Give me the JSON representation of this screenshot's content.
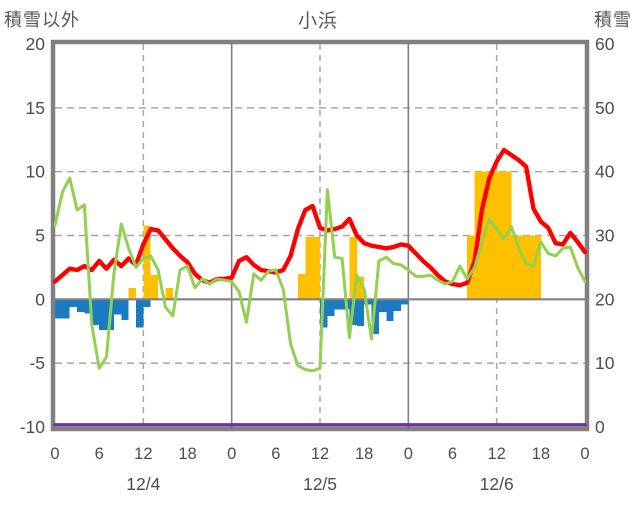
{
  "header": {
    "left_label": "積雪以外",
    "title": "小浜",
    "right_label": "積雪"
  },
  "chart_data": {
    "type": "line+bar",
    "title": "小浜",
    "x_axis": {
      "unit": "hour",
      "range_hours": [
        0,
        72
      ],
      "tick_hours": [
        0,
        6,
        12,
        18,
        24,
        30,
        36,
        42,
        48,
        54,
        60,
        66,
        72
      ],
      "tick_labels": [
        "0",
        "6",
        "12",
        "18",
        "0",
        "6",
        "12",
        "18",
        "0",
        "6",
        "12",
        "18",
        "0"
      ],
      "day_labels": [
        "12/4",
        "12/5",
        "12/6"
      ],
      "day_label_hours": [
        12,
        36,
        60
      ],
      "solid_grid_hours": [
        24,
        48
      ],
      "dashed_grid_hours": [
        12,
        36,
        60
      ]
    },
    "left_axis": {
      "label": "積雪以外",
      "range": [
        -10,
        20
      ],
      "tick_values": [
        20,
        15,
        10,
        5,
        0,
        -5,
        -10
      ],
      "tick_labels": [
        "20",
        "15",
        "10",
        "5",
        "0",
        "-5",
        "-10"
      ],
      "dashed_grid_values": [
        15,
        10,
        5,
        -5
      ],
      "zero_line_value": 0
    },
    "right_axis": {
      "label": "積雪",
      "range": [
        0,
        60
      ],
      "tick_labels": [
        "60",
        "50",
        "40",
        "30",
        "20",
        "10",
        "0"
      ]
    },
    "bars": [
      {
        "name": "orange-bars",
        "color": "#FFC000",
        "axis": "left",
        "values": [
          0,
          0,
          0,
          0,
          0,
          0,
          0,
          0,
          0,
          0,
          0.9,
          0,
          5.8,
          1.9,
          0,
          0.9,
          0,
          0,
          0,
          0,
          0,
          0,
          0,
          0,
          0,
          0,
          0,
          0,
          0,
          0,
          0,
          0,
          0,
          2.0,
          4.9,
          4.9,
          0,
          0,
          0,
          0,
          4.9,
          1.8,
          0,
          0,
          0,
          0,
          0,
          0,
          0,
          0,
          0,
          0,
          0,
          0,
          0,
          0,
          5,
          10,
          10,
          10,
          10,
          10,
          5,
          5,
          5,
          5,
          0,
          0,
          0,
          0,
          0,
          0
        ]
      },
      {
        "name": "blue-bars",
        "color": "#1B7BC2",
        "axis": "left",
        "values": [
          -1.5,
          -1.5,
          -0.6,
          -1.0,
          -1.1,
          -2.0,
          -2.4,
          -2.4,
          -1.2,
          -1.6,
          0,
          -2.2,
          -0.6,
          0,
          0,
          0,
          0,
          0,
          0,
          0,
          0,
          0,
          0,
          0,
          0,
          0,
          0,
          0,
          0,
          0,
          0,
          0,
          0,
          0,
          0,
          0,
          -2.2,
          -1.3,
          -0.8,
          -0.8,
          -2.0,
          -2.1,
          -0.4,
          -2.7,
          -1.0,
          -1.7,
          -0.9,
          -0.4,
          0,
          0,
          0,
          0,
          0,
          0,
          0,
          0,
          0,
          0,
          0,
          0,
          0,
          0,
          0,
          0,
          0,
          0,
          0,
          0,
          0,
          0,
          0,
          0
        ]
      }
    ],
    "lines": [
      {
        "name": "purple-line",
        "color": "#7030A0",
        "axis": "right",
        "constant_value": 0
      },
      {
        "name": "red-line",
        "color": "#FF0000",
        "axis": "left",
        "values": [
          1.4,
          1.9,
          2.4,
          2.3,
          2.6,
          2.3,
          3.0,
          2.4,
          3.1,
          2.6,
          3.2,
          2.7,
          4.3,
          5.5,
          5.4,
          4.7,
          4.0,
          3.4,
          2.9,
          2.0,
          1.5,
          1.3,
          1.6,
          1.6,
          1.7,
          3.0,
          3.3,
          2.7,
          2.3,
          2.2,
          2.1,
          2.3,
          3.4,
          5.5,
          7.0,
          7.3,
          5.6,
          5.4,
          5.5,
          5.7,
          6.3,
          5.0,
          4.4,
          4.2,
          4.1,
          4.0,
          4.1,
          4.3,
          4.2,
          3.6,
          3.0,
          2.5,
          1.9,
          1.4,
          1.2,
          1.1,
          1.3,
          3.0,
          7.0,
          9.5,
          10.8,
          11.7,
          11.3,
          10.9,
          10.4,
          7.1,
          6.1,
          5.6,
          4.4,
          4.3,
          5.2,
          4.5,
          3.7
        ]
      },
      {
        "name": "green-line",
        "color": "#92D050",
        "axis": "left",
        "values": [
          5.8,
          8.4,
          9.5,
          7.0,
          7.4,
          -2.0,
          -5.4,
          -4.5,
          2.0,
          5.9,
          4.0,
          2.5,
          3.2,
          3.4,
          2.3,
          -0.6,
          -1.3,
          2.3,
          2.6,
          0.9,
          1.6,
          1.2,
          1.6,
          1.5,
          1.4,
          0.6,
          -1.8,
          2.0,
          1.5,
          2.2,
          2.3,
          0.8,
          -3.5,
          -5.2,
          -5.5,
          -5.6,
          -5.4,
          8.6,
          3.3,
          3.2,
          -3.0,
          1.9,
          0.8,
          -3.1,
          3.0,
          3.3,
          2.8,
          2.7,
          2.3,
          1.8,
          1.8,
          1.9,
          1.5,
          1.2,
          1.4,
          2.6,
          1.6,
          2.5,
          4.5,
          6.3,
          5.5,
          4.7,
          5.7,
          4.0,
          2.8,
          2.6,
          4.5,
          3.6,
          3.4,
          4.0,
          4.1,
          2.5,
          1.4
        ]
      }
    ],
    "colors": {
      "plot_border": "#808080",
      "grid": "#A6A6A6",
      "zero_line": "#808080",
      "text": "#4d4d4d"
    }
  }
}
